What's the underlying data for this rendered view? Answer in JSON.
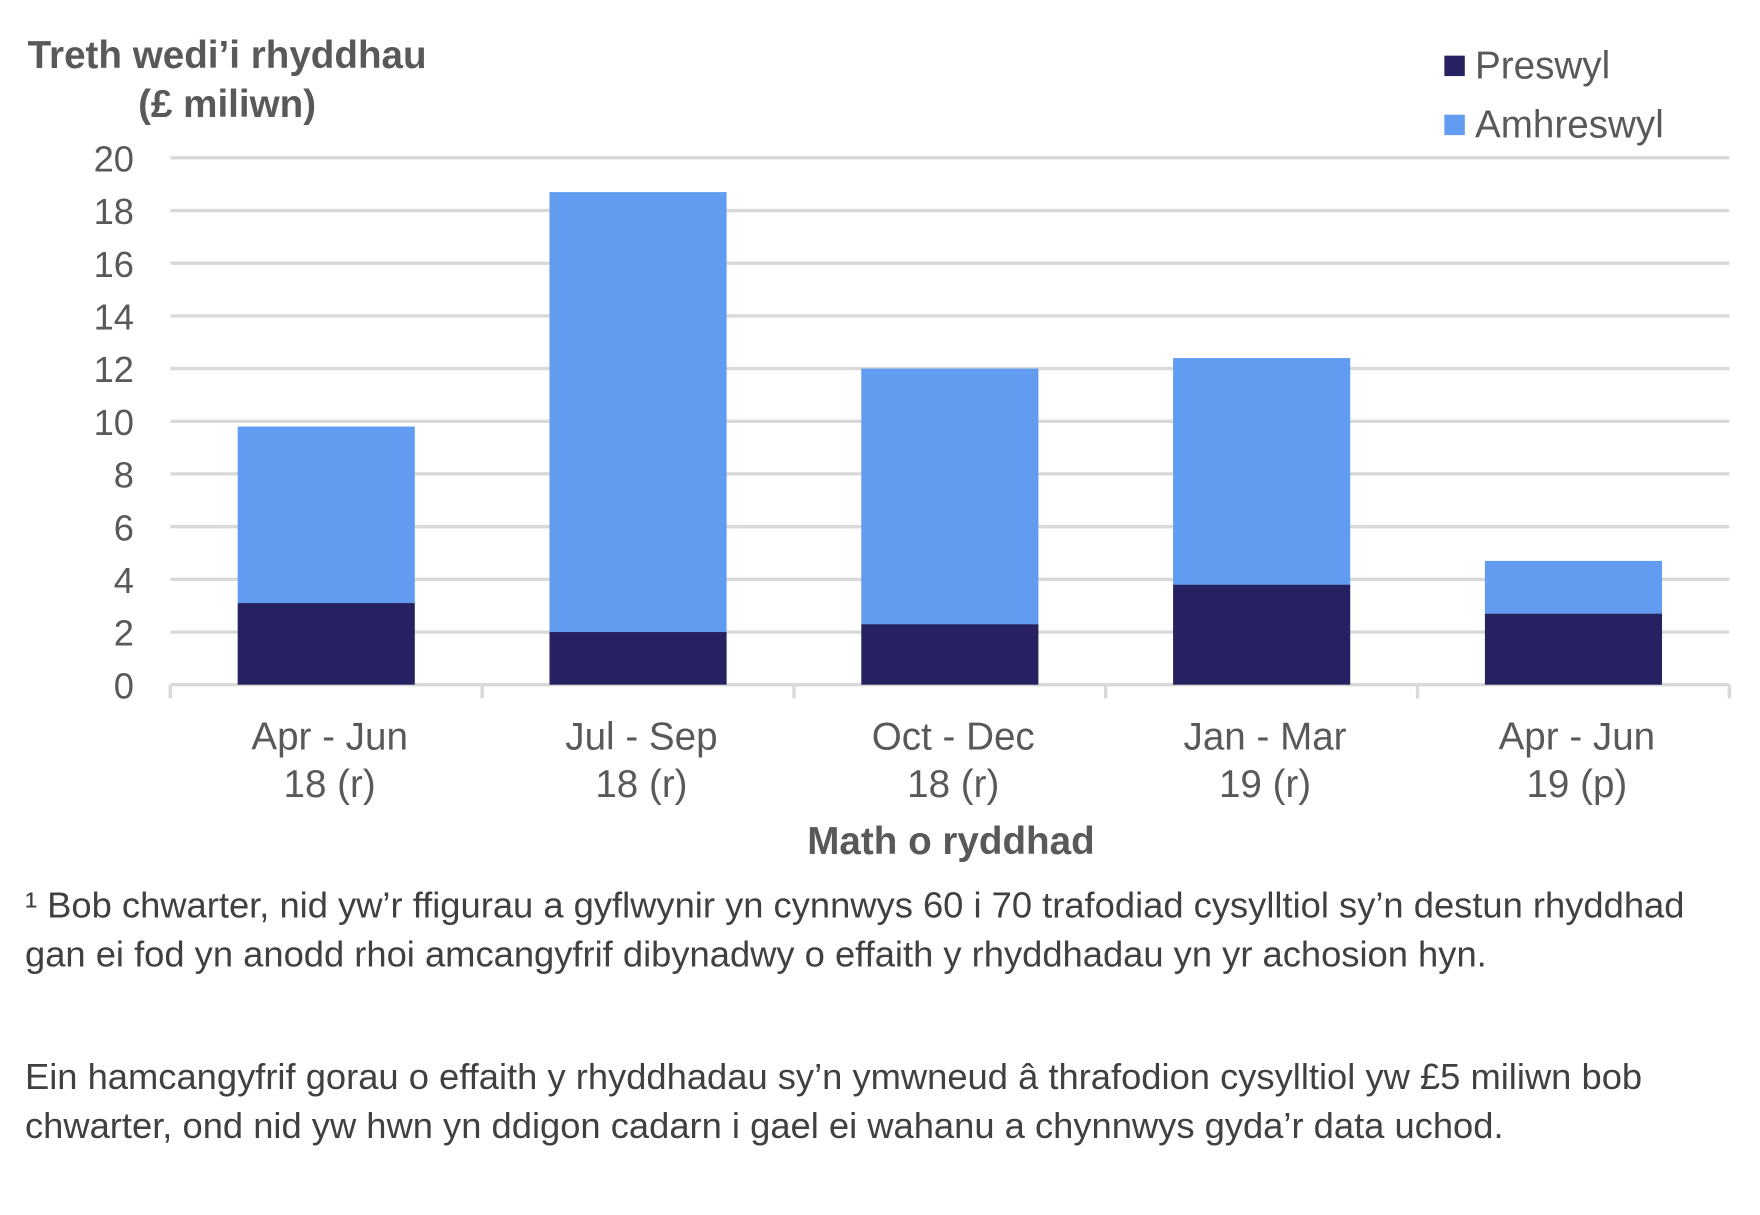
{
  "chart_data": {
    "type": "bar",
    "stacked": true,
    "ylabel": "Treth wedi’i rhyddhau (£ miliwn)",
    "xlabel": "Math o ryddhad",
    "ylim": [
      0,
      20
    ],
    "yticks": [
      "0",
      "2",
      "4",
      "6",
      "8",
      "10",
      "12",
      "14",
      "16",
      "18",
      "20"
    ],
    "grid": true,
    "legend_position": "top-right",
    "categories": [
      [
        "Apr - Jun",
        "18 (r)"
      ],
      [
        "Jul - Sep",
        "18 (r)"
      ],
      [
        "Oct - Dec",
        "18 (r)"
      ],
      [
        "Jan - Mar",
        "19 (r)"
      ],
      [
        "Apr - Jun",
        "19 (p)"
      ]
    ],
    "series": [
      {
        "name": "Preswyl",
        "color": "#262262",
        "values": [
          3.1,
          2.0,
          2.3,
          3.8,
          2.7
        ]
      },
      {
        "name": "Amhreswyl",
        "color": "#619CF0",
        "values": [
          6.7,
          16.7,
          9.7,
          8.6,
          2.0
        ]
      }
    ]
  },
  "notes": [
    "¹ Bob chwarter, nid yw’r ffigurau a gyflwynir yn cynnwys 60 i 70 trafodiad cysylltiol sy’n destun rhyddhad gan ei fod yn anodd rhoi amcangyfrif dibynadwy o effaith y rhyddhadau yn yr achosion hyn.",
    "Ein hamcangyfrif gorau o effaith y rhyddhadau sy’n ymwneud â thrafodion cysylltiol yw £5 miliwn bob chwarter, ond nid yw hwn yn ddigon cadarn i gael ei wahanu a chynnwys gyda’r data uchod."
  ]
}
